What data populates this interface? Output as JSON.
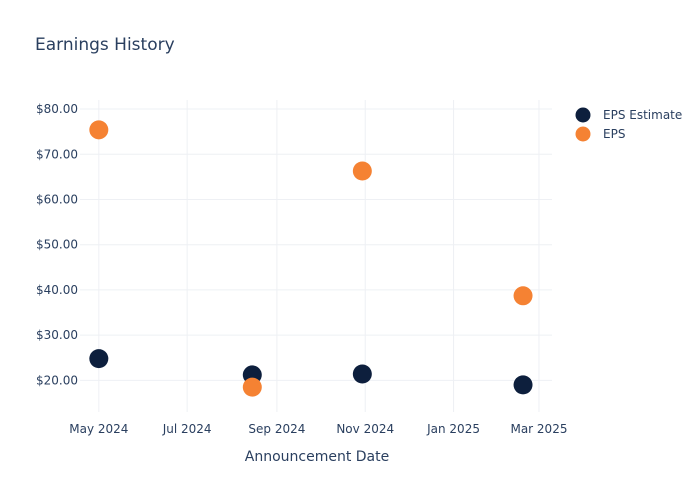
{
  "chart_data": {
    "type": "scatter",
    "title": "Earnings History",
    "xlabel": "Announcement Date",
    "ylabel": "",
    "x_tick_labels": [
      "May 2024",
      "Jul 2024",
      "Sep 2024",
      "Nov 2024",
      "Jan 2025",
      "Mar 2025"
    ],
    "x_tick_dates": [
      "2024-05-01",
      "2024-07-01",
      "2024-09-01",
      "2024-11-01",
      "2025-01-01",
      "2025-03-01"
    ],
    "xlim": [
      "2024-04-18",
      "2025-03-10"
    ],
    "y_tick_labels": [
      "$20.00",
      "$30.00",
      "$40.00",
      "$50.00",
      "$60.00",
      "$70.00",
      "$80.00"
    ],
    "y_ticks": [
      20,
      30,
      40,
      50,
      60,
      70,
      80
    ],
    "ylim": [
      13,
      82
    ],
    "grid": true,
    "legend_position": "top-right",
    "series": [
      {
        "name": "EPS Estimate",
        "color": "#0d1f3d",
        "points": [
          {
            "x": "2024-05-01",
            "y": 24.8
          },
          {
            "x": "2024-08-15",
            "y": 21.2
          },
          {
            "x": "2024-10-30",
            "y": 21.4
          },
          {
            "x": "2025-02-18",
            "y": 19.0
          }
        ]
      },
      {
        "name": "EPS",
        "color": "#f58233",
        "points": [
          {
            "x": "2024-05-01",
            "y": 75.4
          },
          {
            "x": "2024-08-15",
            "y": 18.5
          },
          {
            "x": "2024-10-30",
            "y": 66.3
          },
          {
            "x": "2025-02-18",
            "y": 38.7
          }
        ]
      }
    ]
  }
}
